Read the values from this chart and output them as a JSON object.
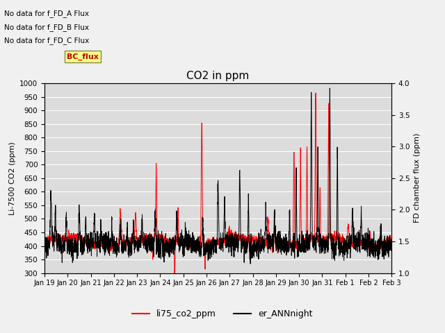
{
  "title": "CO2 in ppm",
  "ylabel_left": "Li-7500 CO2 (ppm)",
  "ylabel_right": "FD chamber flux (ppm)",
  "ylim_left": [
    300,
    1000
  ],
  "ylim_right": [
    1.0,
    4.0
  ],
  "yticks_left": [
    300,
    350,
    400,
    450,
    500,
    550,
    600,
    650,
    700,
    750,
    800,
    850,
    900,
    950,
    1000
  ],
  "yticks_right": [
    1.0,
    1.5,
    2.0,
    2.5,
    3.0,
    3.5,
    4.0
  ],
  "xtick_labels": [
    "Jan 19",
    "Jan 20",
    "Jan 21",
    "Jan 22",
    "Jan 23",
    "Jan 24",
    "Jan 25",
    "Jan 26",
    "Jan 27",
    "Jan 28",
    "Jan 29",
    "Jan 30",
    "Jan 31",
    "Feb 1",
    "Feb 2",
    "Feb 3"
  ],
  "no_data_texts": [
    "No data for f_FD_A Flux",
    "No data for f_FD_B Flux",
    "No data for f_FD_C Flux"
  ],
  "bc_flux_label": "BC_flux",
  "legend_entries": [
    "li75_co2_ppm",
    "er_ANNnight"
  ],
  "legend_colors": [
    "#ff0000",
    "#000000"
  ],
  "plot_bg": "#dcdcdc",
  "fig_bg": "#f0f0f0",
  "red_color": "#ff0000",
  "black_color": "#000000"
}
